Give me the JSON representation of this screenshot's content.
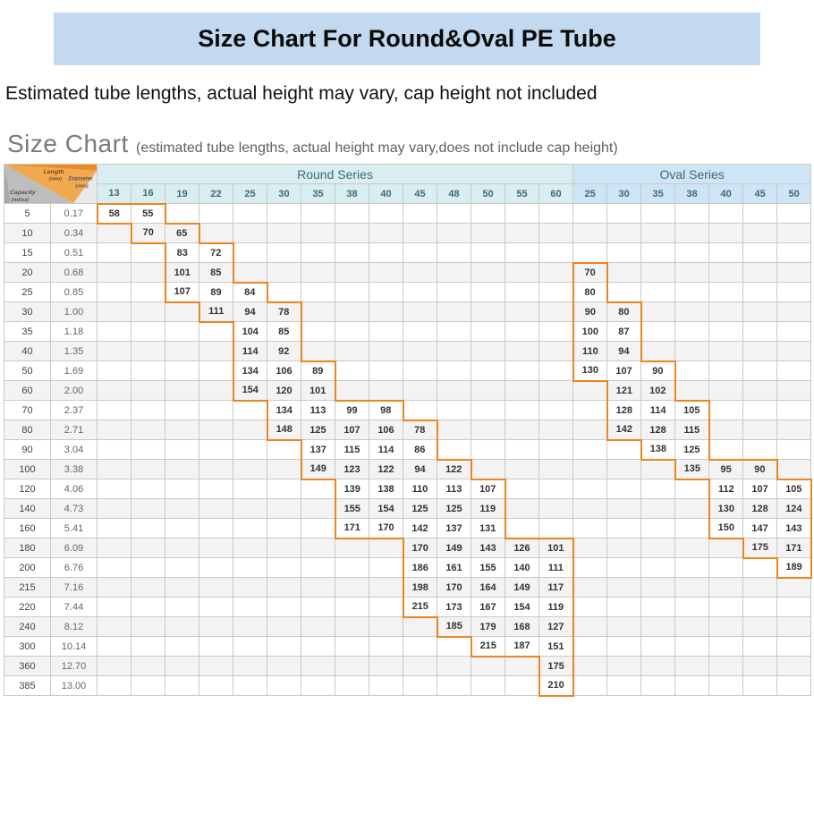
{
  "title": "Size Chart For Round&Oval PE Tube",
  "subtitle": "Estimated tube lengths, actual height may vary, cap height not included",
  "chart_heading": "Size Chart",
  "chart_paren": "(estimated tube lengths, actual height may vary,does not include cap height)",
  "corner_length": "Length",
  "corner_length_unit": "(mm)",
  "corner_diameter": "Diameter",
  "corner_diameter_unit": "(mm)",
  "corner_capacity": "Capacity",
  "corner_capacity_unit": "(ml/oz)",
  "round_label": "Round Series",
  "oval_label": "Oval Series",
  "round_dia": [
    "13",
    "16",
    "19",
    "22",
    "25",
    "30",
    "35",
    "38",
    "40",
    "45",
    "48",
    "50",
    "55",
    "60"
  ],
  "oval_dia": [
    "25",
    "30",
    "35",
    "38",
    "40",
    "45",
    "50"
  ],
  "rows": [
    {
      "cap": "5",
      "oz": "0.17",
      "r": [
        "58",
        "55",
        "",
        "",
        "",
        "",
        "",
        "",
        "",
        "",
        "",
        "",
        "",
        ""
      ],
      "o": [
        "",
        "",
        "",
        "",
        "",
        "",
        ""
      ]
    },
    {
      "cap": "10",
      "oz": "0.34",
      "r": [
        "",
        "70",
        "65",
        "",
        "",
        "",
        "",
        "",
        "",
        "",
        "",
        "",
        "",
        ""
      ],
      "o": [
        "",
        "",
        "",
        "",
        "",
        "",
        ""
      ]
    },
    {
      "cap": "15",
      "oz": "0.51",
      "r": [
        "",
        "",
        "83",
        "72",
        "",
        "",
        "",
        "",
        "",
        "",
        "",
        "",
        "",
        ""
      ],
      "o": [
        "",
        "",
        "",
        "",
        "",
        "",
        ""
      ]
    },
    {
      "cap": "20",
      "oz": "0.68",
      "r": [
        "",
        "",
        "101",
        "85",
        "",
        "",
        "",
        "",
        "",
        "",
        "",
        "",
        "",
        ""
      ],
      "o": [
        "70",
        "",
        "",
        "",
        "",
        "",
        ""
      ]
    },
    {
      "cap": "25",
      "oz": "0.85",
      "r": [
        "",
        "",
        "107",
        "89",
        "84",
        "",
        "",
        "",
        "",
        "",
        "",
        "",
        "",
        ""
      ],
      "o": [
        "80",
        "",
        "",
        "",
        "",
        "",
        ""
      ]
    },
    {
      "cap": "30",
      "oz": "1.00",
      "r": [
        "",
        "",
        "",
        "111",
        "94",
        "78",
        "",
        "",
        "",
        "",
        "",
        "",
        "",
        ""
      ],
      "o": [
        "90",
        "80",
        "",
        "",
        "",
        "",
        ""
      ]
    },
    {
      "cap": "35",
      "oz": "1.18",
      "r": [
        "",
        "",
        "",
        "",
        "104",
        "85",
        "",
        "",
        "",
        "",
        "",
        "",
        "",
        ""
      ],
      "o": [
        "100",
        "87",
        "",
        "",
        "",
        "",
        ""
      ]
    },
    {
      "cap": "40",
      "oz": "1.35",
      "r": [
        "",
        "",
        "",
        "",
        "114",
        "92",
        "",
        "",
        "",
        "",
        "",
        "",
        "",
        ""
      ],
      "o": [
        "110",
        "94",
        "",
        "",
        "",
        "",
        ""
      ]
    },
    {
      "cap": "50",
      "oz": "1.69",
      "r": [
        "",
        "",
        "",
        "",
        "134",
        "106",
        "89",
        "",
        "",
        "",
        "",
        "",
        "",
        ""
      ],
      "o": [
        "130",
        "107",
        "90",
        "",
        "",
        "",
        ""
      ]
    },
    {
      "cap": "60",
      "oz": "2.00",
      "r": [
        "",
        "",
        "",
        "",
        "154",
        "120",
        "101",
        "",
        "",
        "",
        "",
        "",
        "",
        ""
      ],
      "o": [
        "",
        "121",
        "102",
        "",
        "",
        "",
        ""
      ]
    },
    {
      "cap": "70",
      "oz": "2.37",
      "r": [
        "",
        "",
        "",
        "",
        "",
        "134",
        "113",
        "99",
        "98",
        "",
        "",
        "",
        "",
        ""
      ],
      "o": [
        "",
        "128",
        "114",
        "105",
        "",
        "",
        ""
      ]
    },
    {
      "cap": "80",
      "oz": "2.71",
      "r": [
        "",
        "",
        "",
        "",
        "",
        "148",
        "125",
        "107",
        "106",
        "78",
        "",
        "",
        "",
        ""
      ],
      "o": [
        "",
        "142",
        "128",
        "115",
        "",
        "",
        ""
      ]
    },
    {
      "cap": "90",
      "oz": "3.04",
      "r": [
        "",
        "",
        "",
        "",
        "",
        "",
        "137",
        "115",
        "114",
        "86",
        "",
        "",
        "",
        ""
      ],
      "o": [
        "",
        "",
        "138",
        "125",
        "",
        "",
        ""
      ]
    },
    {
      "cap": "100",
      "oz": "3.38",
      "r": [
        "",
        "",
        "",
        "",
        "",
        "",
        "149",
        "123",
        "122",
        "94",
        "122",
        "",
        "",
        ""
      ],
      "o": [
        "",
        "",
        "",
        "135",
        "95",
        "90",
        ""
      ]
    },
    {
      "cap": "120",
      "oz": "4.06",
      "r": [
        "",
        "",
        "",
        "",
        "",
        "",
        "",
        "139",
        "138",
        "110",
        "113",
        "107",
        "",
        ""
      ],
      "o": [
        "",
        "",
        "",
        "",
        "112",
        "107",
        "105"
      ]
    },
    {
      "cap": "140",
      "oz": "4.73",
      "r": [
        "",
        "",
        "",
        "",
        "",
        "",
        "",
        "155",
        "154",
        "125",
        "125",
        "119",
        "",
        ""
      ],
      "o": [
        "",
        "",
        "",
        "",
        "130",
        "128",
        "124"
      ]
    },
    {
      "cap": "160",
      "oz": "5.41",
      "r": [
        "",
        "",
        "",
        "",
        "",
        "",
        "",
        "171",
        "170",
        "142",
        "137",
        "131",
        "",
        ""
      ],
      "o": [
        "",
        "",
        "",
        "",
        "150",
        "147",
        "143"
      ]
    },
    {
      "cap": "180",
      "oz": "6.09",
      "r": [
        "",
        "",
        "",
        "",
        "",
        "",
        "",
        "",
        "",
        "170",
        "149",
        "143",
        "126",
        "101"
      ],
      "o": [
        "",
        "",
        "",
        "",
        "",
        "175",
        "171"
      ]
    },
    {
      "cap": "200",
      "oz": "6.76",
      "r": [
        "",
        "",
        "",
        "",
        "",
        "",
        "",
        "",
        "",
        "186",
        "161",
        "155",
        "140",
        "111"
      ],
      "o": [
        "",
        "",
        "",
        "",
        "",
        "",
        "189"
      ]
    },
    {
      "cap": "215",
      "oz": "7.16",
      "r": [
        "",
        "",
        "",
        "",
        "",
        "",
        "",
        "",
        "",
        "198",
        "170",
        "164",
        "149",
        "117"
      ],
      "o": [
        "",
        "",
        "",
        "",
        "",
        "",
        ""
      ]
    },
    {
      "cap": "220",
      "oz": "7.44",
      "r": [
        "",
        "",
        "",
        "",
        "",
        "",
        "",
        "",
        "",
        "215",
        "173",
        "167",
        "154",
        "119"
      ],
      "o": [
        "",
        "",
        "",
        "",
        "",
        "",
        ""
      ]
    },
    {
      "cap": "240",
      "oz": "8.12",
      "r": [
        "",
        "",
        "",
        "",
        "",
        "",
        "",
        "",
        "",
        "",
        "185",
        "179",
        "168",
        "127"
      ],
      "o": [
        "",
        "",
        "",
        "",
        "",
        "",
        ""
      ]
    },
    {
      "cap": "300",
      "oz": "10.14",
      "r": [
        "",
        "",
        "",
        "",
        "",
        "",
        "",
        "",
        "",
        "",
        "",
        "215",
        "187",
        "151"
      ],
      "o": [
        "",
        "",
        "",
        "",
        "",
        "",
        ""
      ]
    },
    {
      "cap": "360",
      "oz": "12.70",
      "r": [
        "",
        "",
        "",
        "",
        "",
        "",
        "",
        "",
        "",
        "",
        "",
        "",
        "",
        "175"
      ],
      "o": [
        "",
        "",
        "",
        "",
        "",
        "",
        ""
      ]
    },
    {
      "cap": "385",
      "oz": "13.00",
      "r": [
        "",
        "",
        "",
        "",
        "",
        "",
        "",
        "",
        "",
        "",
        "",
        "",
        "",
        "210"
      ],
      "o": [
        "",
        "",
        "",
        "",
        "",
        "",
        ""
      ]
    }
  ],
  "styling": {
    "title_bg": "#c3d9f0",
    "round_hdr_bg": "#d9eef0",
    "oval_hdr_bg": "#cde5f5",
    "grid_color": "#c9c9c9",
    "alt_row_bg": "#f3f3f3",
    "stair_border": "#ec8420",
    "corner_orange": "#ec8b22",
    "corner_grey": "#b8b8b8"
  }
}
